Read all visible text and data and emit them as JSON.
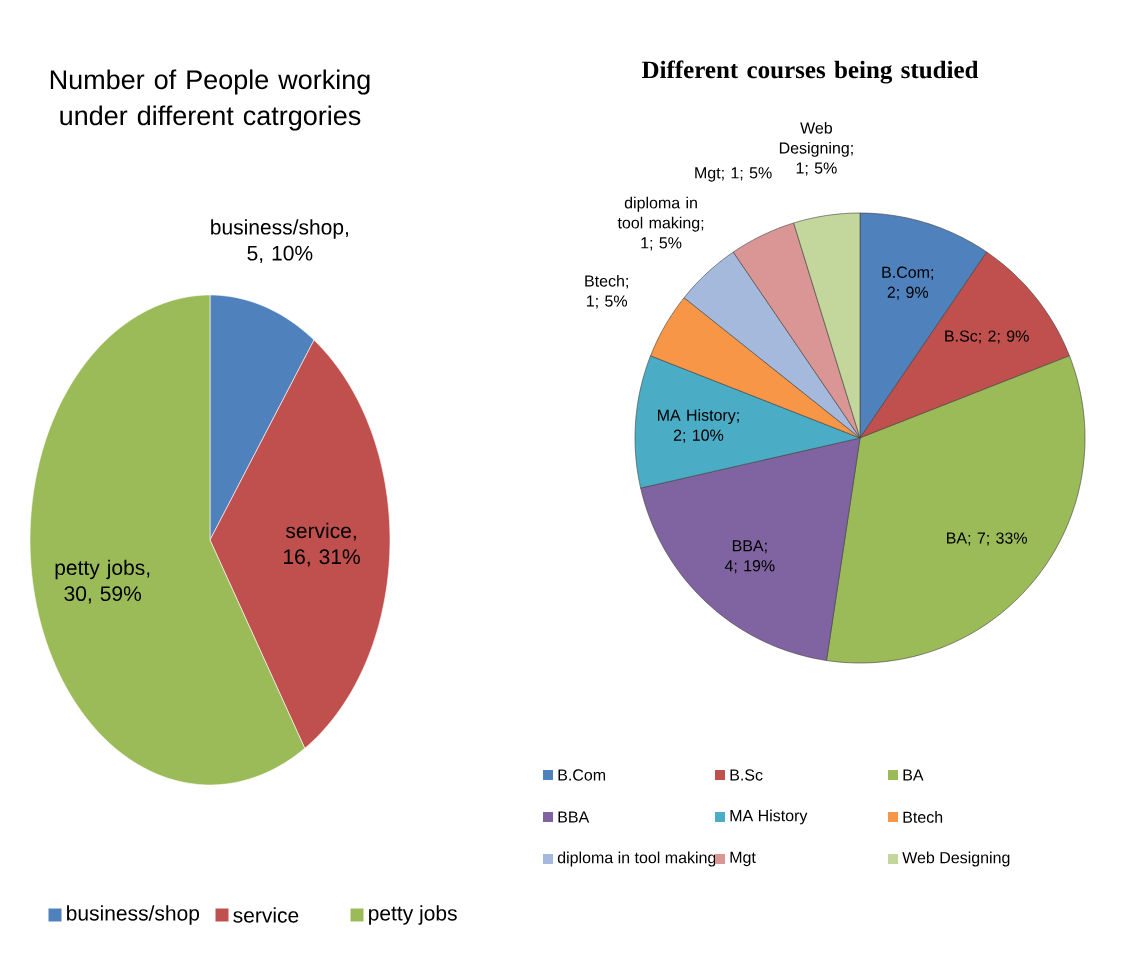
{
  "chart_data": [
    {
      "type": "pie",
      "title": "Number of People working under different catrgories",
      "categories": [
        "business/shop",
        "service",
        "petty jobs"
      ],
      "values": [
        5,
        16,
        30
      ],
      "colors": [
        "#4f81bd",
        "#c0504d",
        "#9bbb59"
      ],
      "value_labels": [
        "business/shop, 5, 10%",
        "service, 16, 31%",
        "petty jobs, 30, 59%"
      ],
      "legend": "bottom"
    },
    {
      "type": "pie",
      "title": "Different courses being studied",
      "categories": [
        "B.Com",
        "B.Sc",
        "BA",
        "BBA",
        "MA History",
        "Btech",
        "diploma in tool making",
        "Mgt",
        "Web Designing"
      ],
      "values": [
        2,
        2,
        7,
        4,
        2,
        1,
        1,
        1,
        1
      ],
      "colors": [
        "#4f81bd",
        "#c0504d",
        "#9bbb59",
        "#8064a2",
        "#4bacc6",
        "#f79646",
        "#a5b9dd",
        "#d99694",
        "#c3d69b"
      ],
      "value_labels": [
        "B.Com; 2; 9%",
        "B.Sc; 2; 9%",
        "BA; 7; 33%",
        "BBA; 4; 19%",
        "MA History; 2; 10%",
        "Btech; 1; 5%",
        "diploma in tool making; 1; 5%",
        "Mgt; 1; 5%",
        "Web Designing; 1; 5%"
      ],
      "legend": "bottom"
    }
  ]
}
